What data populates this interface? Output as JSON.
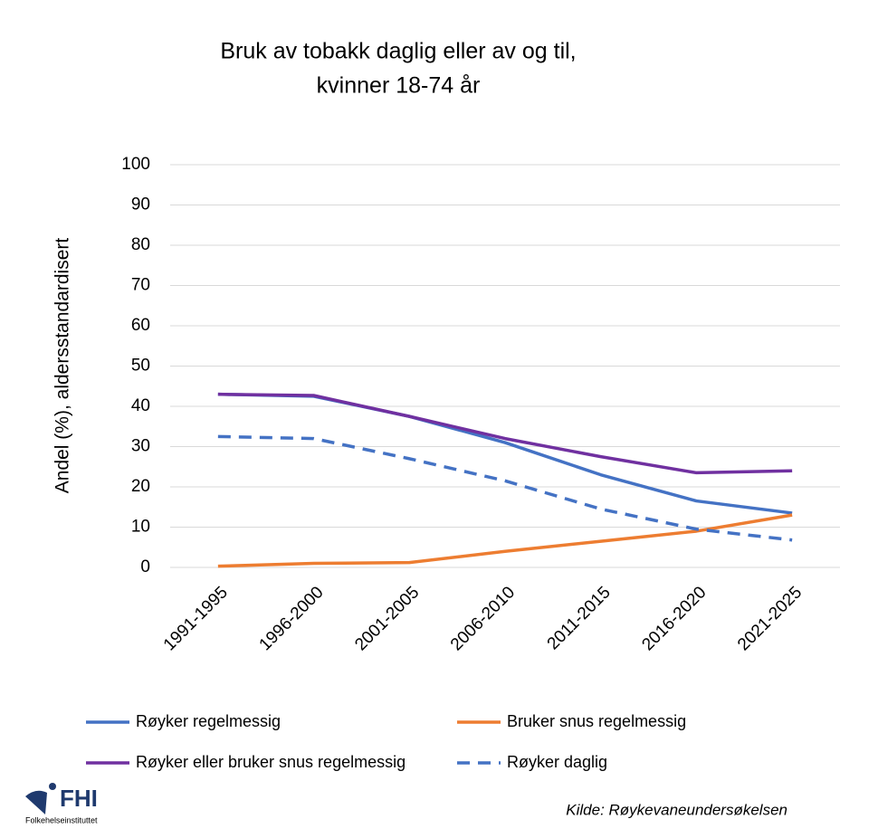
{
  "chart_data": {
    "type": "line",
    "title": [
      "Bruk av tobakk daglig eller av og til,",
      "kvinner 18-74 år"
    ],
    "y_label": "Andel (%), aldersstandardisert",
    "categories": [
      "1991-1995",
      "1996-2000",
      "2001-2005",
      "2006-2010",
      "2011-2015",
      "2016-2020",
      "2021-2025"
    ],
    "series": [
      {
        "name": "Røyker regelmessig",
        "color": "#4472c4",
        "dashed": false,
        "values": [
          43,
          42.5,
          37.5,
          31,
          23,
          16.5,
          13.5
        ]
      },
      {
        "name": "Bruker snus regelmessig",
        "color": "#ed7d31",
        "dashed": false,
        "values": [
          0.3,
          1,
          1.2,
          4,
          6.5,
          9,
          13
        ]
      },
      {
        "name": "Røyker eller bruker snus regelmessig",
        "color": "#7030a0",
        "dashed": false,
        "values": [
          43,
          42.7,
          37.5,
          32,
          27.5,
          23.5,
          24
        ]
      },
      {
        "name": "Røyker daglig",
        "color": "#4472c4",
        "dashed": true,
        "values": [
          32.5,
          32,
          27,
          21.5,
          14.5,
          9.5,
          6.8
        ]
      }
    ],
    "ylim": [
      0,
      100
    ],
    "yticks": [
      0,
      10,
      20,
      30,
      40,
      50,
      60,
      70,
      80,
      90,
      100
    ],
    "grid": true,
    "legend": "bottom",
    "source": "Kilde: Røykevaneundersøkelsen",
    "logo": {
      "name": "FHI",
      "subtitle": "Folkehelseinstituttet"
    }
  }
}
